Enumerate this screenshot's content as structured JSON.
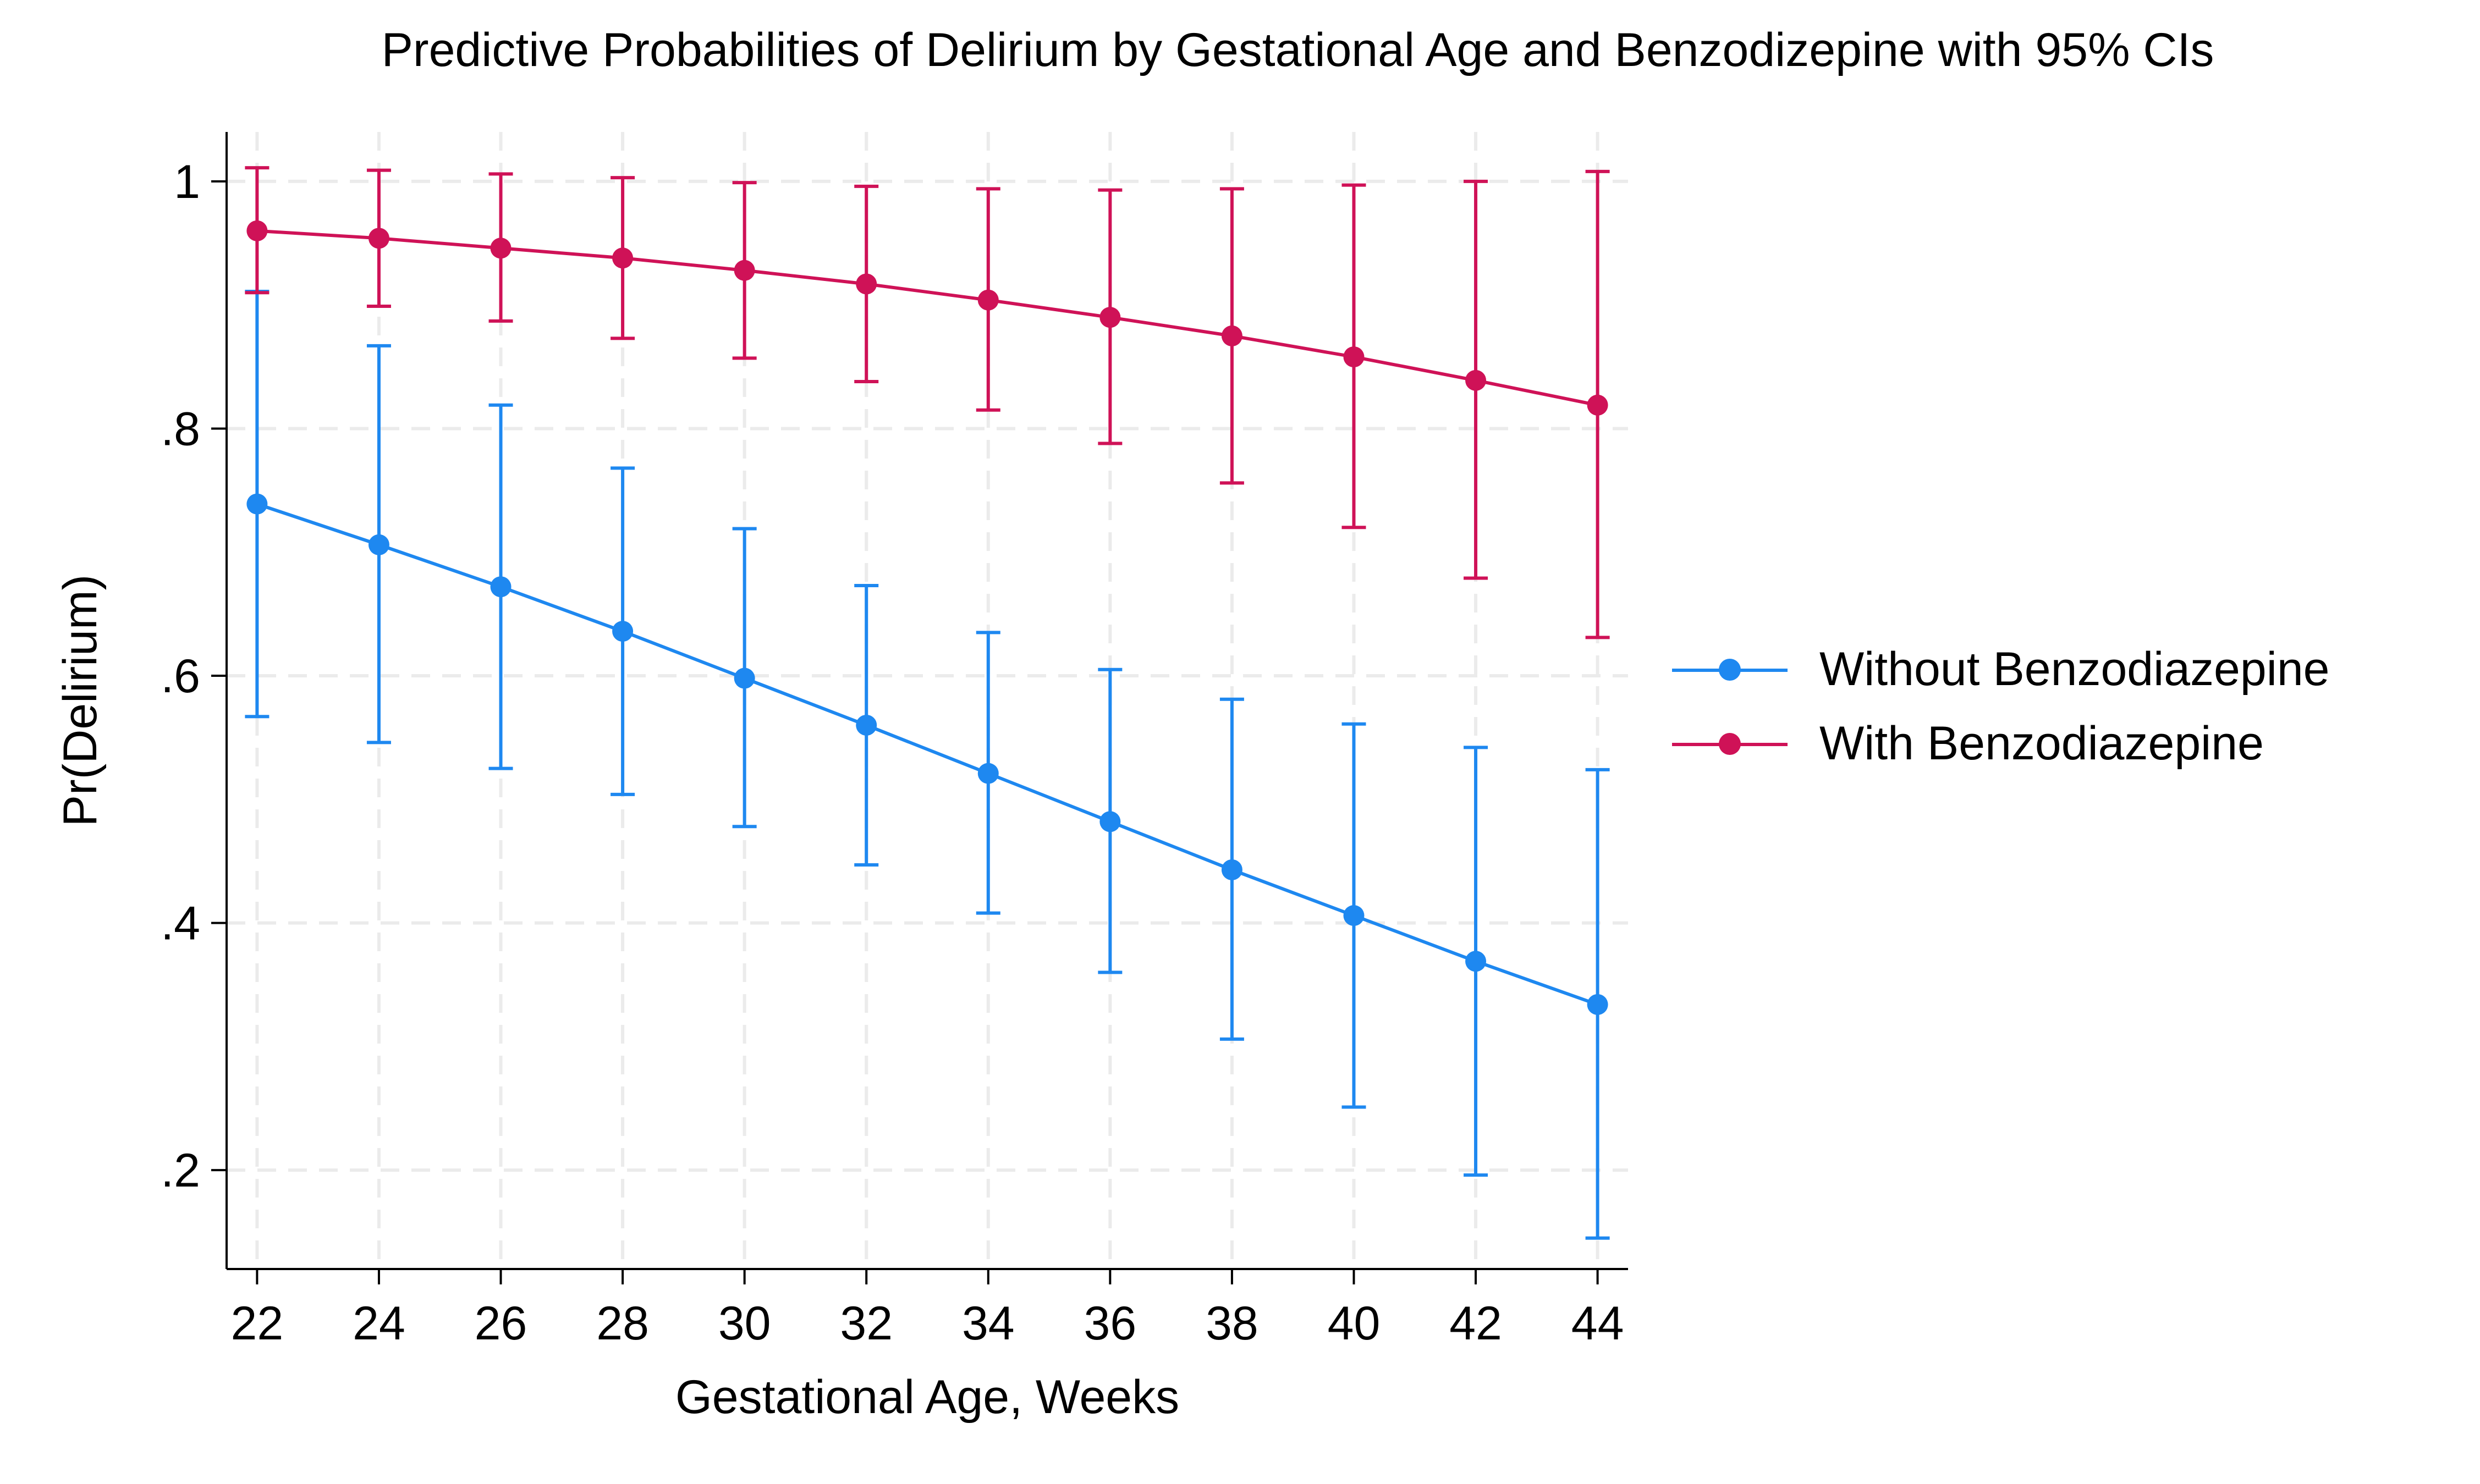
{
  "chart_data": {
    "type": "line",
    "title": "Predictive Probabilities of Delirium by Gestational Age and Benzodizepine with 95% CIs",
    "xlabel": "Gestational Age, Weeks",
    "ylabel": "Pr(Delirium)",
    "x": [
      22,
      24,
      26,
      28,
      30,
      32,
      34,
      36,
      38,
      40,
      42,
      44
    ],
    "xlim": [
      21.5,
      44.5
    ],
    "ylim": [
      0.12,
      1.04
    ],
    "yticks": [
      0.2,
      0.4,
      0.6,
      0.8,
      1.0
    ],
    "ytick_labels": [
      ".2",
      ".4",
      ".6",
      ".8",
      "1"
    ],
    "grid": true,
    "legend_position": "right",
    "series": [
      {
        "name": "Without Benzodiazepine",
        "color": "#1e88f0",
        "values": [
          0.739,
          0.706,
          0.672,
          0.636,
          0.598,
          0.56,
          0.521,
          0.482,
          0.443,
          0.406,
          0.369,
          0.334
        ],
        "ci_low": [
          0.567,
          0.546,
          0.525,
          0.504,
          0.478,
          0.447,
          0.408,
          0.36,
          0.306,
          0.251,
          0.196,
          0.145
        ],
        "ci_high": [
          0.911,
          0.867,
          0.819,
          0.768,
          0.719,
          0.673,
          0.635,
          0.605,
          0.581,
          0.561,
          0.542,
          0.524
        ]
      },
      {
        "name": "With Benzodiazepine",
        "color": "#cf1257",
        "values": [
          0.96,
          0.954,
          0.946,
          0.938,
          0.928,
          0.917,
          0.904,
          0.89,
          0.875,
          0.858,
          0.839,
          0.819
        ],
        "ci_low": [
          0.91,
          0.899,
          0.887,
          0.873,
          0.857,
          0.838,
          0.815,
          0.788,
          0.756,
          0.72,
          0.679,
          0.631
        ],
        "ci_high": [
          1.011,
          1.009,
          1.006,
          1.003,
          0.999,
          0.996,
          0.994,
          0.993,
          0.994,
          0.997,
          1.0,
          1.008
        ]
      }
    ]
  }
}
